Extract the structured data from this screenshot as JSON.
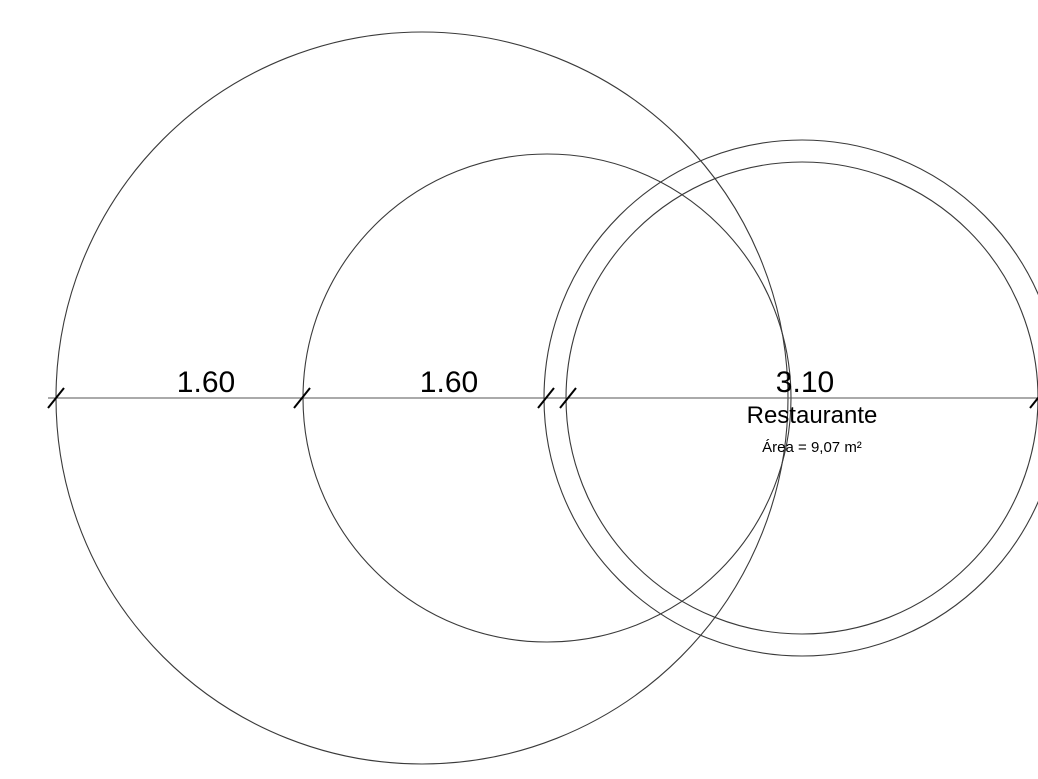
{
  "dimensions": {
    "outer": "1.60",
    "middle": "1.60",
    "room": "3.10"
  },
  "room": {
    "name": "Restaurante",
    "area": "Área = 9,07 m²"
  }
}
